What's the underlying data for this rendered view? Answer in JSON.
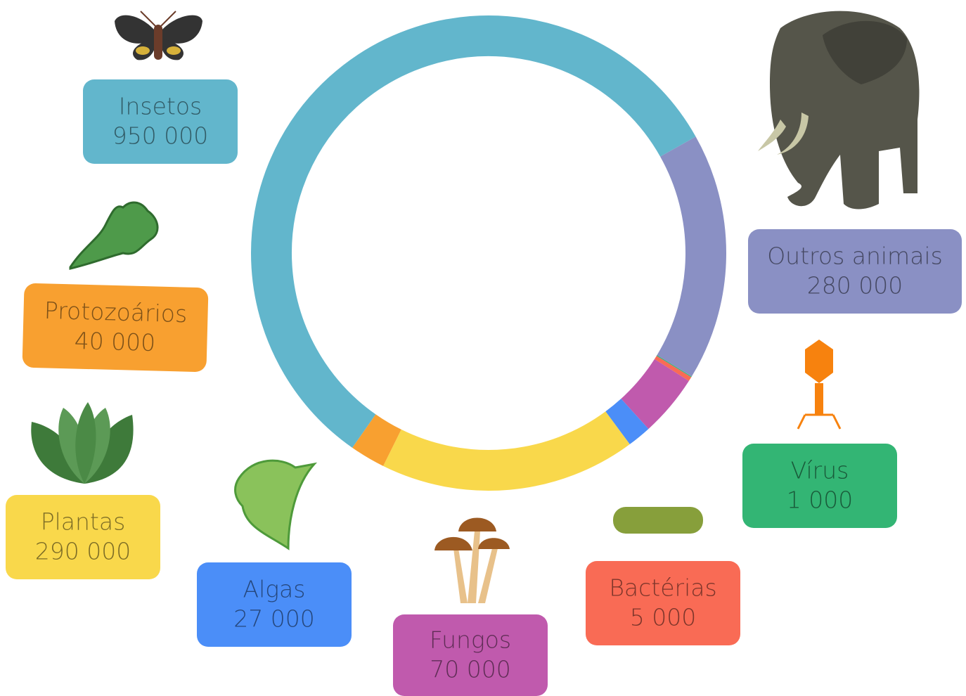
{
  "chart_data": {
    "type": "donut",
    "categories": [
      "Insetos",
      "Outros animais",
      "Vírus",
      "Bactérias",
      "Fungos",
      "Algas",
      "Plantas",
      "Protozoários"
    ],
    "values": [
      950000,
      280000,
      1000,
      5000,
      70000,
      27000,
      290000,
      40000
    ],
    "value_labels": [
      "950 000",
      "280 000",
      "1 000",
      "5 000",
      "70 000",
      "27 000",
      "290 000",
      "40 000"
    ],
    "colors": [
      "#62b6cc",
      "#8a90c4",
      "#33b574",
      "#f96b55",
      "#c05aad",
      "#4b8ef8",
      "#f9d84b",
      "#f8a030"
    ]
  }
}
